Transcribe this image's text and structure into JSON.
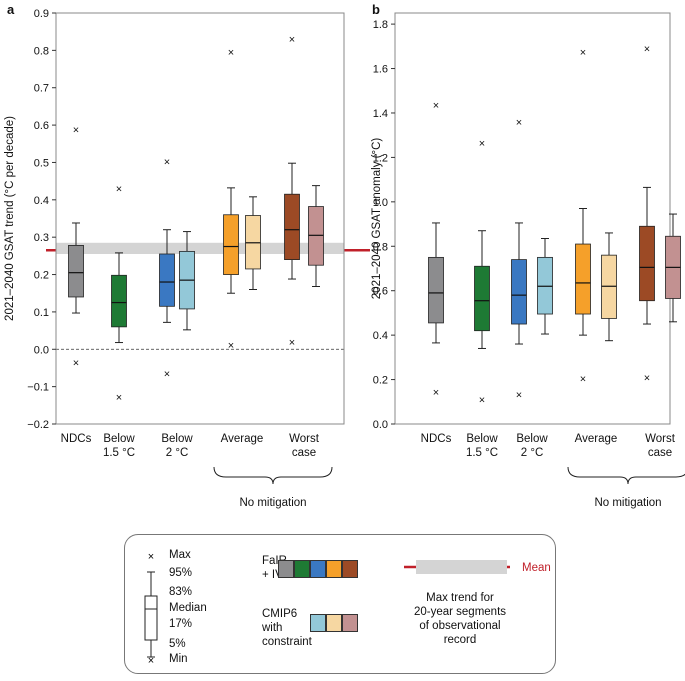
{
  "colors": {
    "grey": "#8c8c8e",
    "green": "#1e7a34",
    "blue": "#3a78c2",
    "orange": "#f5a02a",
    "brown": "#9c4a25",
    "lightblue": "#93c8d8",
    "peach": "#f6d7a2",
    "mauve": "#c29191",
    "band": "#d4d4d4",
    "mean": "#c0202a",
    "frame": "#888888"
  },
  "chart_data": [
    {
      "type": "box",
      "panel_label": "a",
      "title": "",
      "xlabel": "",
      "ylabel": "2021–2040 GSAT trend (°C per decade)",
      "ylim": [
        -0.2,
        0.9
      ],
      "yticks": [
        "−0.2",
        "−0.1",
        "0.0",
        "0.1",
        "0.2",
        "0.3",
        "0.4",
        "0.5",
        "0.6",
        "0.7",
        "0.8",
        "0.9"
      ],
      "ytick_values": [
        -0.2,
        -0.1,
        0.0,
        0.1,
        0.2,
        0.3,
        0.4,
        0.5,
        0.6,
        0.7,
        0.8,
        0.9
      ],
      "categories": [
        "NDCs",
        "Below\n1.5 °C",
        "Below\n2 °C",
        "Average",
        "Worst\ncase"
      ],
      "group_label": "No mitigation",
      "zero_line": 0.0,
      "obs_band": [
        0.255,
        0.285
      ],
      "obs_mean": 0.265,
      "boxes": [
        {
          "category": "NDCs",
          "source": "FaIR + IV",
          "color": "grey",
          "min": -0.035,
          "p5": 0.097,
          "p17": 0.14,
          "median": 0.205,
          "p83": 0.278,
          "p95": 0.338,
          "max": 0.588
        },
        {
          "category": "Below\n1.5 °C",
          "source": "FaIR + IV",
          "color": "green",
          "min": -0.128,
          "p5": 0.018,
          "p17": 0.06,
          "median": 0.125,
          "p83": 0.198,
          "p95": 0.258,
          "max": 0.43
        },
        {
          "category": "Below\n2 °C",
          "source": "FaIR + IV",
          "color": "blue",
          "min": -0.065,
          "p5": 0.072,
          "p17": 0.115,
          "median": 0.18,
          "p83": 0.255,
          "p95": 0.32,
          "max": 0.502
        },
        {
          "category": "Below\n2 °C",
          "source": "CMIP6 with constraint",
          "color": "lightblue",
          "p5": 0.052,
          "p17": 0.108,
          "median": 0.185,
          "p83": 0.262,
          "p95": 0.315
        },
        {
          "category": "Average",
          "source": "FaIR + IV",
          "color": "orange",
          "min": 0.012,
          "p5": 0.15,
          "p17": 0.2,
          "median": 0.275,
          "p83": 0.36,
          "p95": 0.432,
          "max": 0.795
        },
        {
          "category": "Average",
          "source": "CMIP6 with constraint",
          "color": "peach",
          "p5": 0.16,
          "p17": 0.215,
          "median": 0.285,
          "p83": 0.358,
          "p95": 0.408
        },
        {
          "category": "Worst\ncase",
          "source": "FaIR + IV",
          "color": "brown",
          "min": 0.02,
          "p5": 0.188,
          "p17": 0.24,
          "median": 0.32,
          "p83": 0.415,
          "p95": 0.498,
          "max": 0.83
        },
        {
          "category": "Worst\ncase",
          "source": "CMIP6 with constraint",
          "color": "mauve",
          "p5": 0.168,
          "p17": 0.225,
          "median": 0.305,
          "p83": 0.382,
          "p95": 0.438
        }
      ]
    },
    {
      "type": "box",
      "panel_label": "b",
      "title": "",
      "xlabel": "",
      "ylabel": "2021–2040 GSAT anomaly (°C)",
      "ylim": [
        0.0,
        1.85
      ],
      "yticks": [
        "0.0",
        "0.2",
        "0.4",
        "0.6",
        "0.8",
        "1.0",
        "1.2",
        "1.4",
        "1.6",
        "1.8"
      ],
      "ytick_values": [
        0.0,
        0.2,
        0.4,
        0.6,
        0.8,
        1.0,
        1.2,
        1.4,
        1.6,
        1.8
      ],
      "categories": [
        "NDCs",
        "Below\n1.5 °C",
        "Below\n2 °C",
        "Average",
        "Worst\ncase"
      ],
      "group_label": "No mitigation",
      "boxes": [
        {
          "category": "NDCs",
          "source": "FaIR + IV",
          "color": "grey",
          "min": 0.145,
          "p5": 0.365,
          "p17": 0.455,
          "median": 0.59,
          "p83": 0.75,
          "p95": 0.905,
          "max": 1.435
        },
        {
          "category": "Below\n1.5 °C",
          "source": "FaIR + IV",
          "color": "green",
          "min": 0.11,
          "p5": 0.34,
          "p17": 0.42,
          "median": 0.555,
          "p83": 0.71,
          "p95": 0.87,
          "max": 1.265
        },
        {
          "category": "Below\n2 °C",
          "source": "FaIR + IV",
          "color": "blue",
          "min": 0.132,
          "p5": 0.36,
          "p17": 0.45,
          "median": 0.58,
          "p83": 0.74,
          "p95": 0.905,
          "max": 1.36
        },
        {
          "category": "Below\n2 °C",
          "source": "CMIP6 with constraint",
          "color": "lightblue",
          "p5": 0.405,
          "p17": 0.495,
          "median": 0.62,
          "p83": 0.75,
          "p95": 0.835
        },
        {
          "category": "Average",
          "source": "FaIR + IV",
          "color": "orange",
          "min": 0.205,
          "p5": 0.4,
          "p17": 0.495,
          "median": 0.635,
          "p83": 0.81,
          "p95": 0.97,
          "max": 1.675
        },
        {
          "category": "Average",
          "source": "CMIP6 with constraint",
          "color": "peach",
          "p5": 0.375,
          "p17": 0.475,
          "median": 0.62,
          "p83": 0.76,
          "p95": 0.86
        },
        {
          "category": "Worst\ncase",
          "source": "FaIR + IV",
          "color": "brown",
          "min": 0.21,
          "p5": 0.45,
          "p17": 0.555,
          "median": 0.705,
          "p83": 0.89,
          "p95": 1.065,
          "max": 1.69
        },
        {
          "category": "Worst\ncase",
          "source": "CMIP6 with constraint",
          "color": "mauve",
          "p5": 0.46,
          "p17": 0.565,
          "median": 0.705,
          "p83": 0.845,
          "p95": 0.945
        }
      ]
    }
  ],
  "legend": {
    "max": "Max",
    "p95": "95%",
    "p83": "83%",
    "median": "Median",
    "p17": "17%",
    "p5": "5%",
    "min": "Min",
    "fair_label_1": "FaIR",
    "fair_label_2": "+ IV",
    "fair_swatches": [
      "grey",
      "green",
      "blue",
      "orange",
      "brown"
    ],
    "cmip_label_1": "CMIP6",
    "cmip_label_2": "with",
    "cmip_label_3": "constraint",
    "cmip_swatches": [
      "lightblue",
      "peach",
      "mauve"
    ],
    "mean_label": "Mean",
    "band_label_1": "Max trend for",
    "band_label_2": "20-year segments",
    "band_label_3": "of observational",
    "band_label_4": "record"
  }
}
